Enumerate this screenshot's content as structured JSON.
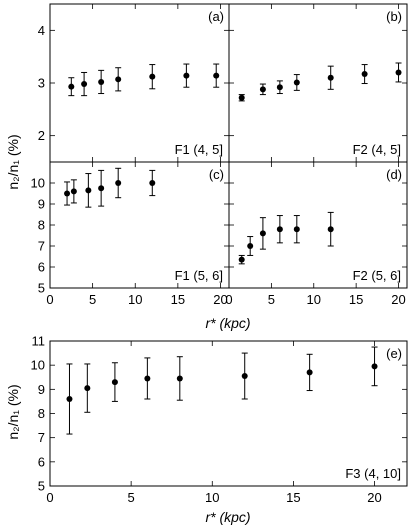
{
  "figure": {
    "ylabel_left_top": "n₂/n₁ (%)",
    "ylabel_left_bottom": "n₂/n₁ (%)",
    "xlabel_top": "r* (kpc)",
    "xlabel_bottom": "r* (kpc)"
  },
  "chart_data": [
    {
      "id": "a",
      "type": "scatter",
      "tag": "(a)",
      "label": "F1 (4, 5]",
      "xlim": [
        0,
        21
      ],
      "ylim": [
        1.5,
        4.5
      ],
      "yticks": [
        2,
        3,
        4
      ],
      "xticks": [
        0,
        5,
        10,
        15,
        20
      ],
      "xticklabels_shown": false,
      "x": [
        2.5,
        4,
        6,
        8,
        12,
        16,
        19.5
      ],
      "y": [
        2.93,
        2.98,
        3.02,
        3.07,
        3.12,
        3.14,
        3.14
      ],
      "yerr": [
        0.17,
        0.22,
        0.22,
        0.22,
        0.23,
        0.22,
        0.22
      ]
    },
    {
      "id": "b",
      "type": "scatter",
      "tag": "(b)",
      "label": "F2 (4, 5]",
      "xlim": [
        0,
        21
      ],
      "ylim": [
        1.5,
        4.5
      ],
      "yticks": [
        2,
        3,
        4
      ],
      "xticks": [
        0,
        5,
        10,
        15,
        20
      ],
      "xticklabels_shown": false,
      "x": [
        1.5,
        4,
        6,
        8,
        12,
        16,
        20
      ],
      "y": [
        2.72,
        2.88,
        2.92,
        3.01,
        3.1,
        3.17,
        3.2
      ],
      "yerr": [
        0.06,
        0.1,
        0.12,
        0.15,
        0.22,
        0.18,
        0.18
      ]
    },
    {
      "id": "c",
      "type": "scatter",
      "tag": "(c)",
      "label": "F1 (5, 6]",
      "xlim": [
        0,
        21
      ],
      "ylim": [
        5,
        11
      ],
      "yticks": [
        5,
        6,
        7,
        8,
        9,
        10
      ],
      "xticks": [
        0,
        5,
        10,
        15,
        20
      ],
      "xticklabels_shown": true,
      "x": [
        2,
        2.8,
        4.5,
        6,
        8,
        12
      ],
      "y": [
        9.5,
        9.6,
        9.65,
        9.75,
        10,
        10
      ],
      "yerr": [
        0.55,
        0.55,
        0.8,
        0.85,
        0.7,
        0.6
      ]
    },
    {
      "id": "d",
      "type": "scatter",
      "tag": "(d)",
      "label": "F2 (5, 6]",
      "xlim": [
        0,
        21
      ],
      "ylim": [
        5,
        11
      ],
      "yticks": [
        5,
        6,
        7,
        8,
        9,
        10
      ],
      "xticks": [
        0,
        5,
        10,
        15,
        20
      ],
      "xticklabels_shown": true,
      "x": [
        1.5,
        2.5,
        4,
        6,
        8,
        12
      ],
      "y": [
        6.35,
        7,
        7.6,
        7.8,
        7.8,
        7.8
      ],
      "yerr": [
        0.2,
        0.45,
        0.75,
        0.65,
        0.65,
        0.8
      ]
    },
    {
      "id": "e",
      "type": "scatter",
      "tag": "(e)",
      "label": "F3 (4, 10]",
      "xlim": [
        0,
        22
      ],
      "ylim": [
        5,
        11
      ],
      "yticks": [
        5,
        6,
        7,
        8,
        9,
        10,
        11
      ],
      "xticks": [
        0,
        5,
        10,
        15,
        20
      ],
      "xticklabels_shown": true,
      "x": [
        1.2,
        2.3,
        4,
        6,
        8,
        12,
        16,
        20
      ],
      "y": [
        8.6,
        9.05,
        9.3,
        9.45,
        9.45,
        9.55,
        9.7,
        9.95
      ],
      "yerr": [
        1.45,
        1.0,
        0.8,
        0.85,
        0.9,
        0.95,
        0.75,
        0.8
      ]
    }
  ]
}
